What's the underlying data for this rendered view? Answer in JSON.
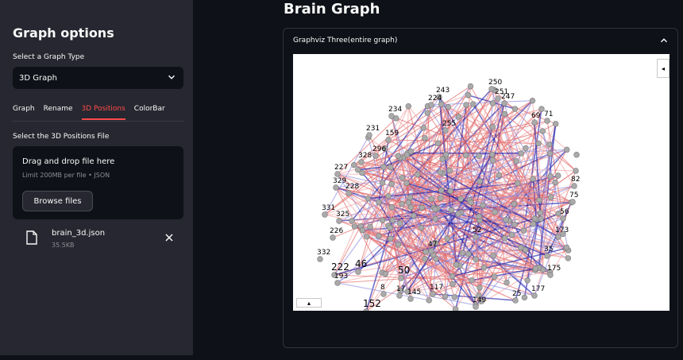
{
  "sidebar": {
    "title": "Graph options",
    "graph_type_label": "Select a Graph Type",
    "graph_type_value": "3D Graph",
    "tabs": [
      {
        "label": "Graph"
      },
      {
        "label": "Rename"
      },
      {
        "label": "3D Positions"
      },
      {
        "label": "ColorBar"
      }
    ],
    "active_tab": "3D Positions",
    "positions_label": "Select the 3D Positions File",
    "dropzone": {
      "title": "Drag and drop file here",
      "limit": "Limit 200MB per file • JSON",
      "browse_label": "Browse files"
    },
    "file": {
      "name": "brain_3d.json",
      "size": "35.5KB"
    }
  },
  "main": {
    "title": "Brain Graph",
    "expander_title": "Graphviz Three(entire graph)",
    "side_button": "◂",
    "bottom_button": "▴"
  },
  "graph": {
    "colors": {
      "edge_red": "#e06666",
      "edge_pink": "#f2a0a0",
      "edge_blue": "#2222aa",
      "edge_lightblue": "#8888dd",
      "node": "#aaaaaa"
    },
    "labels": [
      {
        "t": "250"
      },
      {
        "t": "251"
      },
      {
        "t": "243"
      },
      {
        "t": "224"
      },
      {
        "t": "247"
      },
      {
        "t": "234"
      },
      {
        "t": "69"
      },
      {
        "t": "71"
      },
      {
        "t": "231"
      },
      {
        "t": "159"
      },
      {
        "t": "255"
      },
      {
        "t": "296"
      },
      {
        "t": "328"
      },
      {
        "t": "227"
      },
      {
        "t": "329"
      },
      {
        "t": "228"
      },
      {
        "t": "331"
      },
      {
        "t": "325"
      },
      {
        "t": "226"
      },
      {
        "t": "332"
      },
      {
        "t": "222"
      },
      {
        "t": "46"
      },
      {
        "t": "193"
      },
      {
        "t": "50"
      },
      {
        "t": "152"
      },
      {
        "t": "17"
      },
      {
        "t": "117"
      },
      {
        "t": "47"
      },
      {
        "t": "52"
      },
      {
        "t": "177"
      },
      {
        "t": "25"
      },
      {
        "t": "56"
      },
      {
        "t": "75"
      },
      {
        "t": "82"
      },
      {
        "t": "173"
      },
      {
        "t": "149"
      },
      {
        "t": "35"
      },
      {
        "t": "175"
      },
      {
        "t": "145"
      },
      {
        "t": "8"
      }
    ]
  }
}
